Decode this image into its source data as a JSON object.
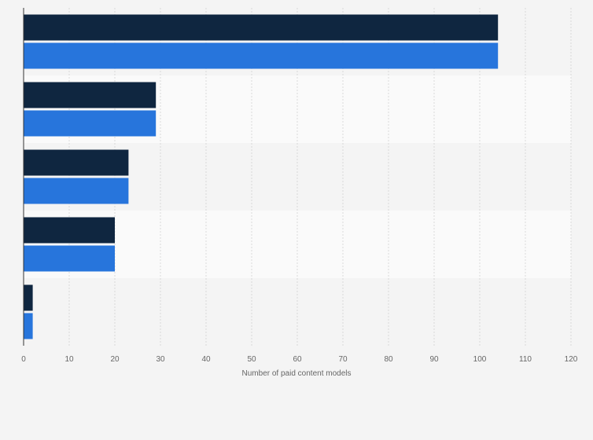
{
  "chart_data": {
    "type": "bar",
    "orientation": "horizontal",
    "categories": [
      "",
      "",
      "",
      "",
      ""
    ],
    "series": [
      {
        "values": [
          104,
          29,
          23,
          20,
          2
        ],
        "color": "#0f2640"
      },
      {
        "values": [
          104,
          29,
          23,
          20,
          2
        ],
        "color": "#2775dc"
      }
    ],
    "xlabel": "Number of paid content models",
    "ylabel": "",
    "xlim": [
      0,
      120
    ],
    "xticks": [
      0,
      10,
      20,
      30,
      40,
      50,
      60,
      70,
      80,
      90,
      100,
      110,
      120
    ],
    "grid": true,
    "legend": "none",
    "colors": {
      "band_even": "#f4f4f4",
      "band_odd": "#fafafa",
      "grid": "#d9d9d9",
      "axis": "#333333"
    }
  }
}
